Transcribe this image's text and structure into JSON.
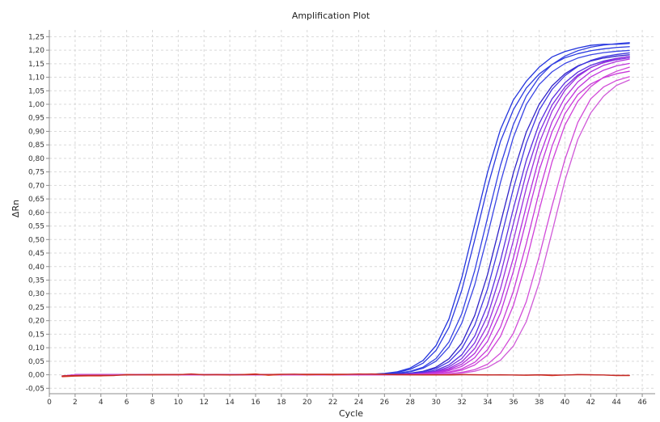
{
  "chart_data": {
    "type": "line",
    "title": "Amplification Plot",
    "xlabel": "Cycle",
    "ylabel": "ΔRn",
    "xlim": [
      0,
      47
    ],
    "ylim": [
      -0.07,
      1.275
    ],
    "x_ticks": [
      0,
      2,
      4,
      6,
      8,
      10,
      12,
      14,
      16,
      18,
      20,
      22,
      24,
      26,
      28,
      30,
      32,
      34,
      36,
      38,
      40,
      42,
      44,
      46
    ],
    "y_ticks": [
      -0.05,
      0.0,
      0.05,
      0.1,
      0.15,
      0.2,
      0.25,
      0.3,
      0.35,
      0.4,
      0.45,
      0.5,
      0.55,
      0.6,
      0.65,
      0.7,
      0.75,
      0.8,
      0.85,
      0.9,
      0.95,
      1.0,
      1.05,
      1.1,
      1.15,
      1.2,
      1.25
    ],
    "y_tick_labels": [
      "-0,05",
      "0,00",
      "0,05",
      "0,10",
      "0,15",
      "0,20",
      "0,25",
      "0,30",
      "0,35",
      "0,40",
      "0,45",
      "0,50",
      "0,55",
      "0,60",
      "0,65",
      "0,70",
      "0,75",
      "0,80",
      "0,85",
      "0,90",
      "0,95",
      "1,00",
      "1,05",
      "1,10",
      "1,15",
      "1,20",
      "1,25"
    ],
    "grid": true,
    "legend": "none",
    "x": [
      1,
      2,
      3,
      4,
      5,
      6,
      7,
      8,
      9,
      10,
      11,
      12,
      13,
      14,
      15,
      16,
      17,
      18,
      19,
      20,
      21,
      22,
      23,
      24,
      25,
      26,
      27,
      28,
      29,
      30,
      31,
      32,
      33,
      34,
      35,
      36,
      37,
      38,
      39,
      40,
      41,
      42,
      43,
      44,
      45
    ],
    "series": [
      {
        "color": "#2233dd",
        "values": [
          -0.005,
          0.0,
          0.0,
          0.0,
          0.0,
          0.0,
          0.0,
          0.0,
          0.0,
          0.0,
          0.0,
          0.0,
          0.0,
          0.0,
          0.0,
          0.0,
          0.0,
          0.0,
          0.0,
          0.0,
          0.0,
          0.0,
          0.001,
          0.001,
          0.002,
          0.005,
          0.011,
          0.025,
          0.053,
          0.108,
          0.206,
          0.359,
          0.554,
          0.749,
          0.907,
          1.016,
          1.085,
          1.137,
          1.175,
          1.195,
          1.208,
          1.218,
          1.222,
          1.222,
          1.225
        ]
      },
      {
        "color": "#2b3ae0",
        "values": [
          -0.005,
          0.0,
          0.0,
          0.0,
          0.0,
          0.0,
          0.0,
          0.0,
          0.0,
          0.0,
          0.0,
          0.0,
          0.0,
          0.0,
          0.0,
          0.0,
          0.0,
          0.0,
          0.0,
          0.0,
          0.0,
          0.0,
          0.001,
          0.001,
          0.002,
          0.004,
          0.009,
          0.02,
          0.043,
          0.09,
          0.175,
          0.313,
          0.498,
          0.694,
          0.863,
          0.98,
          1.06,
          1.112,
          1.147,
          1.172,
          1.187,
          1.198,
          1.205,
          1.21,
          1.213
        ]
      },
      {
        "color": "#3340e2",
        "values": [
          -0.005,
          0.0,
          0.0,
          0.0,
          0.0,
          0.0,
          0.0,
          0.0,
          0.0,
          0.0,
          0.0,
          0.0,
          0.0,
          0.0,
          0.0,
          0.0,
          0.0,
          0.0,
          0.0,
          0.0,
          0.0,
          0.0,
          0.0,
          0.001,
          0.001,
          0.003,
          0.006,
          0.013,
          0.028,
          0.06,
          0.121,
          0.226,
          0.385,
          0.581,
          0.774,
          0.925,
          1.03,
          1.1,
          1.147,
          1.178,
          1.198,
          1.211,
          1.219,
          1.224,
          1.228
        ]
      },
      {
        "color": "#3a45e4",
        "values": [
          -0.005,
          0.0,
          0.0,
          0.0,
          0.0,
          0.0,
          0.0,
          0.0,
          0.0,
          0.0,
          0.0,
          0.0,
          0.0,
          0.0,
          0.0,
          0.0,
          0.0,
          0.0,
          0.0,
          0.0,
          0.0,
          0.0,
          0.0,
          0.001,
          0.001,
          0.002,
          0.005,
          0.011,
          0.024,
          0.05,
          0.102,
          0.191,
          0.332,
          0.516,
          0.711,
          0.878,
          0.999,
          1.073,
          1.12,
          1.151,
          1.171,
          1.183,
          1.191,
          1.196,
          1.199
        ]
      },
      {
        "color": "#3023c8",
        "values": [
          -0.005,
          0.0,
          0.0,
          0.0,
          0.0,
          0.0,
          0.0,
          0.0,
          0.0,
          0.0,
          0.0,
          0.0,
          0.0,
          0.0,
          0.0,
          0.0,
          0.0,
          0.0,
          0.0,
          0.0,
          0.0,
          0.0,
          0.0,
          0.0,
          0.001,
          0.001,
          0.003,
          0.006,
          0.013,
          0.028,
          0.059,
          0.117,
          0.219,
          0.371,
          0.56,
          0.746,
          0.897,
          1.0,
          1.068,
          1.113,
          1.142,
          1.16,
          1.171,
          1.178,
          1.183
        ]
      },
      {
        "color": "#4236e0",
        "values": [
          -0.005,
          0.0,
          0.0,
          0.0,
          0.0,
          0.0,
          0.0,
          0.0,
          0.0,
          0.0,
          0.0,
          0.0,
          0.0,
          0.0,
          0.0,
          0.0,
          0.0,
          0.0,
          0.0,
          0.0,
          0.0,
          0.0,
          0.0,
          0.0,
          0.001,
          0.001,
          0.002,
          0.005,
          0.011,
          0.023,
          0.048,
          0.097,
          0.183,
          0.318,
          0.496,
          0.688,
          0.856,
          0.978,
          1.055,
          1.106,
          1.14,
          1.162,
          1.176,
          1.184,
          1.19
        ]
      },
      {
        "color": "#5a2ee0",
        "values": [
          -0.005,
          0.0,
          0.0,
          0.0,
          0.0,
          0.0,
          0.0,
          0.0,
          0.0,
          0.0,
          0.0,
          0.0,
          0.0,
          0.0,
          0.0,
          0.0,
          0.0,
          0.0,
          0.0,
          0.0,
          0.0,
          0.0,
          0.0,
          0.0,
          0.0,
          0.001,
          0.002,
          0.004,
          0.008,
          0.017,
          0.036,
          0.074,
          0.143,
          0.258,
          0.422,
          0.614,
          0.792,
          0.928,
          1.02,
          1.08,
          1.119,
          1.144,
          1.16,
          1.17,
          1.177
        ]
      },
      {
        "color": "#7a2de0",
        "values": [
          -0.005,
          0.0,
          0.0,
          0.0,
          0.0,
          0.0,
          0.0,
          0.0,
          0.0,
          0.0,
          0.0,
          0.0,
          0.0,
          0.0,
          0.0,
          0.0,
          0.0,
          0.0,
          0.0,
          0.0,
          0.0,
          0.0,
          0.0,
          0.0,
          0.0,
          0.001,
          0.001,
          0.003,
          0.006,
          0.013,
          0.029,
          0.06,
          0.118,
          0.219,
          0.369,
          0.558,
          0.745,
          0.894,
          0.997,
          1.064,
          1.108,
          1.136,
          1.154,
          1.165,
          1.172
        ]
      },
      {
        "color": "#9a2ede",
        "values": [
          -0.005,
          0.0,
          0.0,
          0.0,
          0.0,
          0.0,
          0.0,
          0.0,
          0.0,
          0.0,
          0.0,
          0.0,
          0.0,
          0.0,
          0.0,
          0.0,
          0.0,
          0.0,
          0.0,
          0.0,
          0.0,
          0.0,
          0.0,
          0.0,
          0.0,
          0.0,
          0.001,
          0.002,
          0.005,
          0.011,
          0.023,
          0.048,
          0.097,
          0.183,
          0.318,
          0.496,
          0.689,
          0.856,
          0.974,
          1.052,
          1.103,
          1.135,
          1.156,
          1.169,
          1.177
        ]
      },
      {
        "color": "#b02edc",
        "values": [
          -0.005,
          0.0,
          0.0,
          0.0,
          0.0,
          0.0,
          0.0,
          0.0,
          0.0,
          0.0,
          0.0,
          0.0,
          0.0,
          0.0,
          0.0,
          0.0,
          0.0,
          0.0,
          0.0,
          0.0,
          0.0,
          0.0,
          0.0,
          0.0,
          0.0,
          0.0,
          0.001,
          0.002,
          0.004,
          0.009,
          0.019,
          0.039,
          0.079,
          0.151,
          0.268,
          0.432,
          0.623,
          0.803,
          0.935,
          1.025,
          1.083,
          1.12,
          1.144,
          1.158,
          1.167
        ]
      },
      {
        "color": "#c032dc",
        "values": [
          -0.005,
          0.0,
          0.0,
          0.0,
          0.0,
          0.0,
          0.0,
          0.0,
          0.0,
          0.0,
          0.0,
          0.0,
          0.0,
          0.0,
          0.0,
          0.0,
          0.0,
          0.0,
          0.0,
          0.0,
          0.0,
          0.0,
          0.0,
          0.0,
          0.0,
          0.0,
          0.001,
          0.001,
          0.003,
          0.007,
          0.015,
          0.031,
          0.063,
          0.124,
          0.228,
          0.382,
          0.571,
          0.755,
          0.898,
          0.996,
          1.06,
          1.101,
          1.126,
          1.142,
          1.151
        ]
      },
      {
        "color": "#c838d8",
        "values": [
          -0.005,
          0.0,
          0.0,
          0.0,
          0.0,
          0.0,
          0.0,
          0.0,
          0.0,
          0.0,
          0.0,
          0.0,
          0.0,
          0.0,
          0.0,
          0.0,
          0.0,
          0.0,
          0.0,
          0.0,
          0.0,
          0.0,
          0.0,
          0.0,
          0.0,
          0.0,
          0.001,
          0.001,
          0.002,
          0.005,
          0.01,
          0.022,
          0.046,
          0.093,
          0.176,
          0.308,
          0.484,
          0.676,
          0.845,
          0.965,
          1.036,
          1.075,
          1.098,
          1.113,
          1.122
        ]
      },
      {
        "color": "#cf40d8",
        "values": [
          -0.005,
          0.0,
          0.0,
          0.0,
          0.0,
          0.0,
          0.0,
          0.0,
          0.0,
          0.0,
          0.0,
          0.0,
          0.0,
          0.0,
          0.0,
          0.0,
          0.0,
          0.0,
          0.0,
          0.0,
          0.0,
          0.0,
          0.0,
          0.0,
          0.0,
          0.0,
          0.0,
          0.001,
          0.002,
          0.004,
          0.008,
          0.017,
          0.036,
          0.073,
          0.142,
          0.256,
          0.418,
          0.608,
          0.787,
          0.923,
          1.011,
          1.065,
          1.1,
          1.122,
          1.137
        ]
      },
      {
        "color": "#d24ad8",
        "values": [
          -0.005,
          0.0,
          0.0,
          0.0,
          0.0,
          0.0,
          0.0,
          0.0,
          0.0,
          0.0,
          0.0,
          0.0,
          0.0,
          0.0,
          0.0,
          0.0,
          0.0,
          0.0,
          0.0,
          0.0,
          0.0,
          0.0,
          0.0,
          0.0,
          0.0,
          0.0,
          0.0,
          0.0,
          0.001,
          0.002,
          0.004,
          0.009,
          0.019,
          0.039,
          0.08,
          0.153,
          0.27,
          0.437,
          0.624,
          0.796,
          0.933,
          1.02,
          1.064,
          1.088,
          1.102
        ]
      },
      {
        "color": "#d05ad8",
        "values": [
          -0.005,
          0.0,
          0.0,
          0.0,
          0.0,
          0.0,
          0.0,
          0.0,
          0.0,
          0.0,
          0.0,
          0.0,
          0.0,
          0.0,
          0.0,
          0.0,
          0.0,
          0.0,
          0.0,
          0.0,
          0.0,
          0.0,
          0.0,
          0.0,
          0.0,
          0.0,
          0.0,
          0.0,
          0.001,
          0.001,
          0.003,
          0.006,
          0.013,
          0.027,
          0.054,
          0.106,
          0.196,
          0.34,
          0.527,
          0.718,
          0.87,
          0.968,
          1.03,
          1.07,
          1.09
        ]
      },
      {
        "color": "#e03a1e",
        "values": [
          -0.007,
          -0.005,
          -0.004,
          -0.004,
          -0.003,
          0.001,
          0.0,
          -0.001,
          0.0,
          0.0,
          0.003,
          0.0,
          0.0,
          -0.001,
          0.001,
          0.003,
          -0.002,
          0.001,
          0.002,
          0.0,
          0.001,
          0.0,
          0.001,
          0.003,
          0.002,
          0.001,
          0.0,
          0.0,
          -0.001,
          -0.001,
          0.0,
          0.001,
          0.0,
          0.0,
          -0.001,
          -0.001,
          -0.002,
          -0.001,
          -0.003,
          -0.001,
          0.0,
          0.0,
          -0.001,
          -0.003,
          -0.003
        ]
      },
      {
        "color": "#c02828",
        "values": [
          -0.004,
          -0.003,
          -0.002,
          -0.002,
          -0.002,
          -0.001,
          0.0,
          0.001,
          0.001,
          0.001,
          0.002,
          0.0,
          0.001,
          0.0,
          0.0,
          0.001,
          0.001,
          0.002,
          0.002,
          0.002,
          0.002,
          0.002,
          0.002,
          0.002,
          0.003,
          0.002,
          0.001,
          0.0,
          0.0,
          0.0,
          -0.001,
          0.0,
          0.0,
          -0.001,
          0.0,
          -0.001,
          -0.001,
          0.0,
          -0.001,
          -0.001,
          0.001,
          0.0,
          -0.001,
          -0.002,
          -0.002
        ]
      }
    ]
  }
}
